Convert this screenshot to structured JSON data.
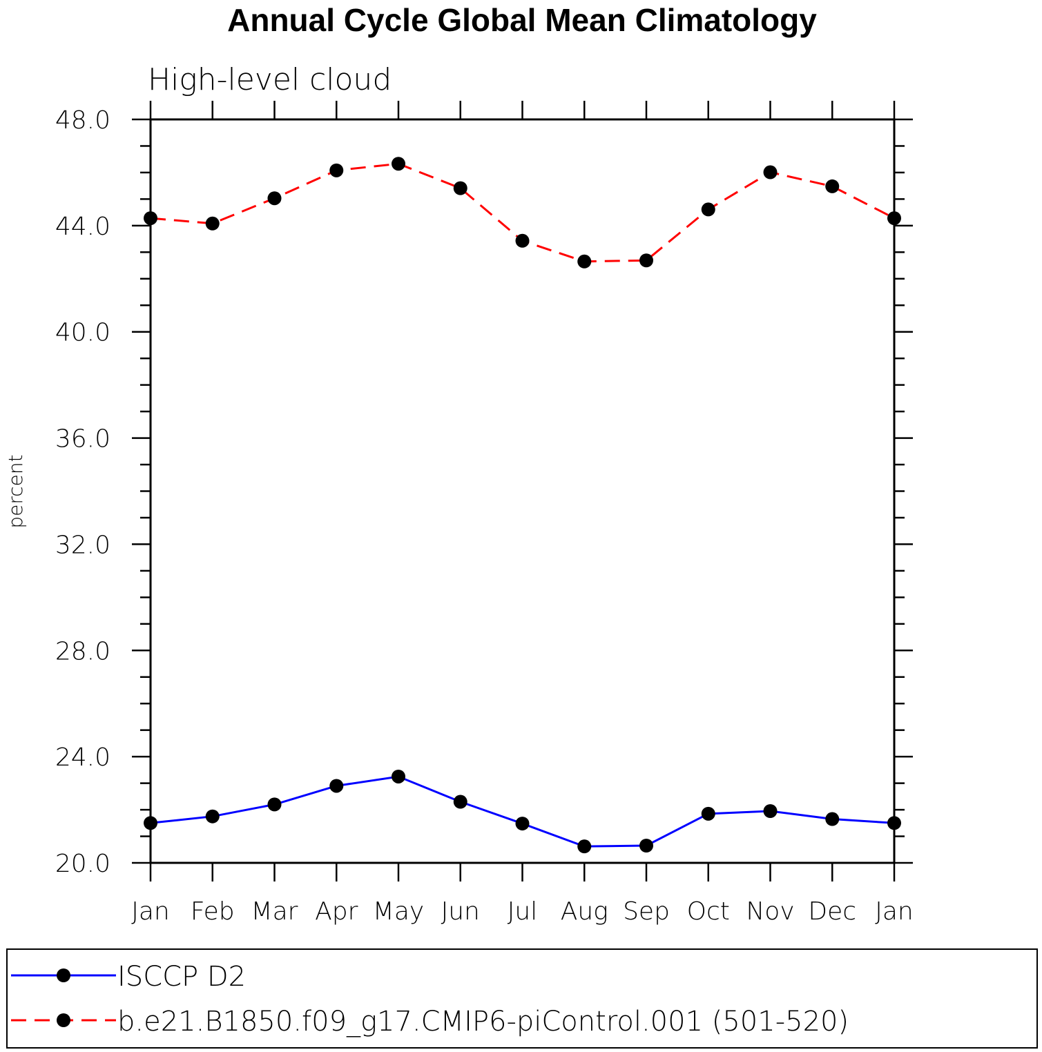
{
  "chart_data": {
    "type": "line",
    "title": "Annual Cycle Global Mean Climatology",
    "subtitle": "High-level cloud",
    "xlabel": "",
    "ylabel": "percent",
    "categories": [
      "Jan",
      "Feb",
      "Mar",
      "Apr",
      "May",
      "Jun",
      "Jul",
      "Aug",
      "Sep",
      "Oct",
      "Nov",
      "Dec",
      "Jan"
    ],
    "ylim": [
      20.0,
      48.0
    ],
    "yticks": [
      "20.0",
      "24.0",
      "28.0",
      "32.0",
      "36.0",
      "40.0",
      "44.0",
      "48.0"
    ],
    "legend_position": "bottom",
    "series": [
      {
        "name": "ISCCP D2",
        "color": "#0000ff",
        "line_style": "solid",
        "marker": "filled-circle",
        "values": [
          21.5,
          21.75,
          22.2,
          22.9,
          23.25,
          22.3,
          21.48,
          20.62,
          20.65,
          21.85,
          21.95,
          21.65,
          21.5
        ]
      },
      {
        "name": "b.e21.B1850.f09_g17.CMIP6-piControl.001 (501-520)",
        "color": "#ff0000",
        "line_style": "dashed",
        "marker": "filled-circle",
        "values": [
          44.28,
          44.08,
          45.03,
          46.08,
          46.33,
          45.41,
          43.43,
          42.65,
          42.69,
          44.61,
          46.01,
          45.48,
          44.28
        ]
      }
    ]
  }
}
